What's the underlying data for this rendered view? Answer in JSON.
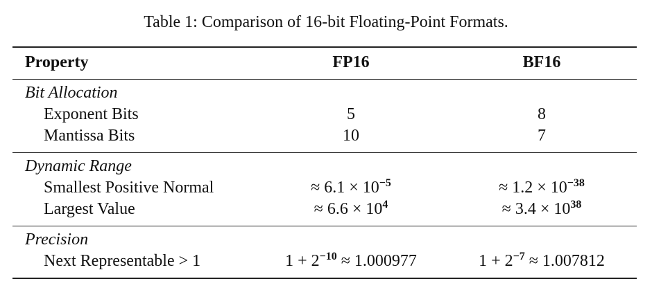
{
  "caption": "Table 1: Comparison of 16-bit Floating-Point Formats.",
  "table": {
    "header": [
      "Property",
      "FP16",
      "BF16"
    ],
    "sections": [
      {
        "title": "Bit Allocation",
        "rows": [
          [
            "Exponent Bits",
            5,
            8
          ],
          [
            "Mantissa Bits",
            10,
            7
          ]
        ]
      },
      {
        "title": "Dynamic Range",
        "rows": [
          [
            "Smallest Positive Normal",
            {
              "before": "≈ 6.1 × 10",
              "sup": "−5"
            },
            {
              "before": "≈ 1.2 × 10",
              "sup": "−38"
            }
          ],
          [
            "Largest Value",
            {
              "before": "≈ 6.6 × 10",
              "sup": "4"
            },
            {
              "before": "≈ 3.4 × 10",
              "sup": "38"
            }
          ]
        ]
      },
      {
        "title": "Precision",
        "rows": [
          [
            "Next Representable > 1",
            {
              "before": "1 + 2",
              "sup": "−10",
              "after": " ≈ 1.000977"
            },
            {
              "before": "1 + 2",
              "sup": "−7",
              "after": " ≈ 1.007812"
            }
          ]
        ]
      }
    ]
  }
}
